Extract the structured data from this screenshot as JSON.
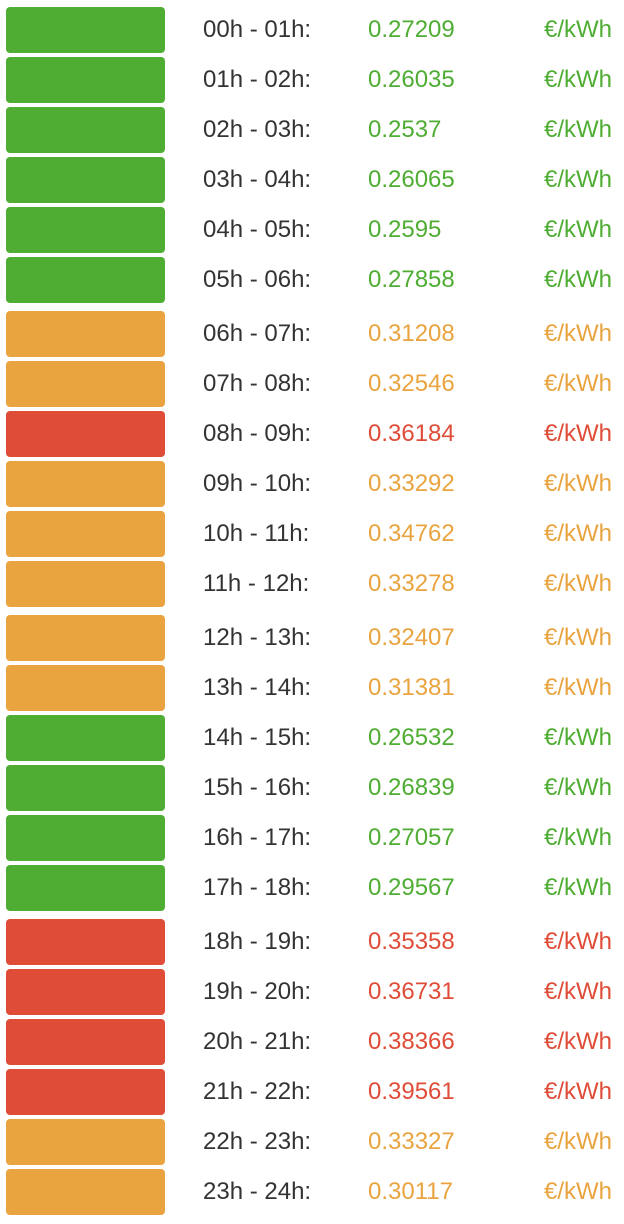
{
  "rows": [
    {
      "time": "00h - 01h:",
      "price": "0.27209",
      "unit": "€/kWh",
      "color": "#4fad33"
    },
    {
      "time": "01h - 02h:",
      "price": "0.26035",
      "unit": "€/kWh",
      "color": "#4fad33"
    },
    {
      "time": "02h - 03h:",
      "price": "0.2537",
      "unit": "€/kWh",
      "color": "#4fad33"
    },
    {
      "time": "03h - 04h:",
      "price": "0.26065",
      "unit": "€/kWh",
      "color": "#4fad33"
    },
    {
      "time": "04h - 05h:",
      "price": "0.2595",
      "unit": "€/kWh",
      "color": "#4fad33"
    },
    {
      "time": "05h - 06h:",
      "price": "0.27858",
      "unit": "€/kWh",
      "color": "#4fad33"
    },
    {
      "time": "06h - 07h:",
      "price": "0.31208",
      "unit": "€/kWh",
      "color": "#e9a440"
    },
    {
      "time": "07h - 08h:",
      "price": "0.32546",
      "unit": "€/kWh",
      "color": "#e9a440"
    },
    {
      "time": "08h - 09h:",
      "price": "0.36184",
      "unit": "€/kWh",
      "color": "#df4c37"
    },
    {
      "time": "09h - 10h:",
      "price": "0.33292",
      "unit": "€/kWh",
      "color": "#e9a440"
    },
    {
      "time": "10h - 11h:",
      "price": "0.34762",
      "unit": "€/kWh",
      "color": "#e9a440"
    },
    {
      "time": "11h - 12h:",
      "price": "0.33278",
      "unit": "€/kWh",
      "color": "#e9a440"
    },
    {
      "time": "12h - 13h:",
      "price": "0.32407",
      "unit": "€/kWh",
      "color": "#e9a440"
    },
    {
      "time": "13h - 14h:",
      "price": "0.31381",
      "unit": "€/kWh",
      "color": "#e9a440"
    },
    {
      "time": "14h - 15h:",
      "price": "0.26532",
      "unit": "€/kWh",
      "color": "#4fad33"
    },
    {
      "time": "15h - 16h:",
      "price": "0.26839",
      "unit": "€/kWh",
      "color": "#4fad33"
    },
    {
      "time": "16h - 17h:",
      "price": "0.27057",
      "unit": "€/kWh",
      "color": "#4fad33"
    },
    {
      "time": "17h - 18h:",
      "price": "0.29567",
      "unit": "€/kWh",
      "color": "#4fad33"
    },
    {
      "time": "18h - 19h:",
      "price": "0.35358",
      "unit": "€/kWh",
      "color": "#df4c37"
    },
    {
      "time": "19h - 20h:",
      "price": "0.36731",
      "unit": "€/kWh",
      "color": "#df4c37"
    },
    {
      "time": "20h - 21h:",
      "price": "0.38366",
      "unit": "€/kWh",
      "color": "#df4c37"
    },
    {
      "time": "21h - 22h:",
      "price": "0.39561",
      "unit": "€/kWh",
      "color": "#df4c37"
    },
    {
      "time": "22h - 23h:",
      "price": "0.33327",
      "unit": "€/kWh",
      "color": "#e9a440"
    },
    {
      "time": "23h - 24h:",
      "price": "0.30117",
      "unit": "€/kWh",
      "color": "#e9a440"
    }
  ]
}
